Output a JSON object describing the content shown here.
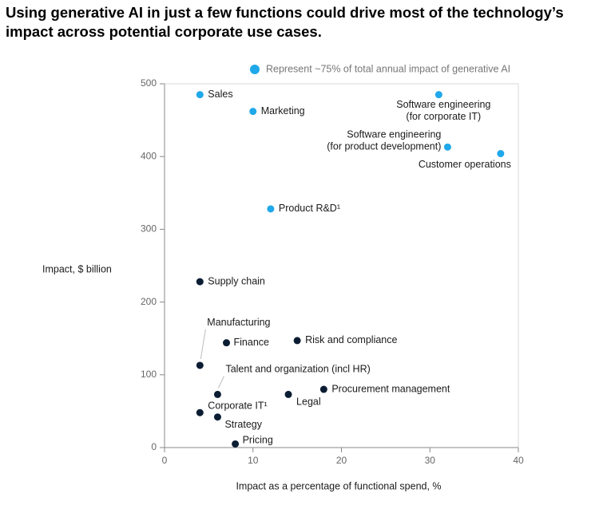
{
  "chart_data": {
    "type": "scatter",
    "title": "Using generative AI in just a few functions could drive most of the technology’s impact across potential corporate use cases.",
    "y_label": "Impact, $ billion",
    "x_label": "Impact as a percentage of functional spend, %",
    "xlim": [
      0,
      40
    ],
    "xticks": [
      0,
      10,
      20,
      30,
      40
    ],
    "ylim": [
      0,
      500
    ],
    "yticks": [
      0,
      100,
      200,
      300,
      400,
      500
    ],
    "series": [
      {
        "name": "Represent ~75% of total annual impact of generative AI",
        "color": "#1fa8ea",
        "x": [
          4,
          10,
          31,
          32,
          38,
          12
        ],
        "y": [
          485,
          462,
          485,
          413,
          404,
          328
        ],
        "labels": [
          [
            "Sales"
          ],
          [
            "Marketing"
          ],
          [
            "Software engineering",
            "(for corporate IT)"
          ],
          [
            "Software engineering",
            "(for product development)"
          ],
          [
            "Customer operations"
          ],
          [
            "Product R&D¹"
          ]
        ]
      },
      {
        "color": "#0b1d33",
        "x": [
          4,
          4,
          7,
          15,
          6,
          14,
          18,
          4,
          6,
          8
        ],
        "y": [
          228,
          113,
          144,
          147,
          73,
          73,
          80,
          48,
          42,
          5
        ],
        "labels": [
          [
            "Supply chain"
          ],
          [
            "Manufacturing"
          ],
          [
            "Finance"
          ],
          [
            "Risk and compliance"
          ],
          [
            "Talent and organization (incl HR)"
          ],
          [
            "Legal"
          ],
          [
            "Procurement management"
          ],
          [
            "Corporate IT¹"
          ],
          [
            "Strategy"
          ],
          [
            "Pricing"
          ]
        ]
      }
    ]
  }
}
